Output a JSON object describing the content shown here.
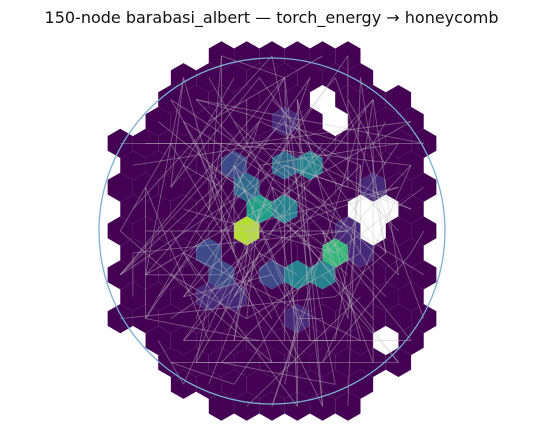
{
  "figure": {
    "title": "150-node barabasi_albert — torch_energy → honeycomb"
  },
  "colors": {
    "background": "#ffffff",
    "boundary_circle": "#7aaed0",
    "edges": "#c0c0c0",
    "missing_cell": "#ffffff",
    "colormap": [
      "#440154",
      "#482878",
      "#3e4a89",
      "#31688e",
      "#26828e",
      "#1f9e89",
      "#35b779",
      "#6ece58",
      "#b5de2b",
      "#fde725"
    ]
  },
  "chart_data": {
    "type": "heatmap",
    "layout": "honeycomb",
    "node_count": 150,
    "rows": [
      {
        "q_start": 0,
        "cells": 6
      },
      {
        "q_start": -2,
        "cells": 8
      },
      {
        "q_start": -2,
        "cells": 10
      },
      {
        "q_start": -3,
        "cells": 11
      },
      {
        "q_start": -4,
        "cells": 13
      },
      {
        "q_start": -4,
        "cells": 12
      },
      {
        "q_start": -4,
        "cells": 13
      },
      {
        "q_start": -4,
        "cells": 12
      },
      {
        "q_start": -4,
        "cells": 13
      },
      {
        "q_start": -4,
        "cells": 12
      },
      {
        "q_start": -4,
        "cells": 13
      },
      {
        "q_start": -4,
        "cells": 12
      },
      {
        "q_start": -4,
        "cells": 13
      },
      {
        "q_start": -3,
        "cells": 11
      },
      {
        "q_start": -2,
        "cells": 10
      },
      {
        "q_start": -2,
        "cells": 8
      },
      {
        "q_start": 0,
        "cells": 6
      }
    ],
    "missing": [
      [
        7,
        9
      ],
      [
        7,
        10
      ],
      [
        8,
        10
      ],
      [
        2,
        6
      ],
      [
        3,
        7
      ],
      [
        13,
        9
      ]
    ],
    "highlights": [
      {
        "row": 8,
        "col": 5,
        "value": 0.93
      },
      {
        "row": 9,
        "col": 8,
        "value": 0.68
      },
      {
        "row": 7,
        "col": 5,
        "value": 0.55
      },
      {
        "row": 5,
        "col": 7,
        "value": 0.48
      },
      {
        "row": 7,
        "col": 6,
        "value": 0.42
      },
      {
        "row": 10,
        "col": 7,
        "value": 0.42
      },
      {
        "row": 10,
        "col": 8,
        "value": 0.4
      },
      {
        "row": 6,
        "col": 5,
        "value": 0.3
      },
      {
        "row": 5,
        "col": 6,
        "value": 0.28
      },
      {
        "row": 10,
        "col": 4,
        "value": 0.26
      },
      {
        "row": 10,
        "col": 6,
        "value": 0.24
      },
      {
        "row": 5,
        "col": 4,
        "value": 0.2
      },
      {
        "row": 9,
        "col": 3,
        "value": 0.18
      },
      {
        "row": 11,
        "col": 3,
        "value": 0.16
      },
      {
        "row": 11,
        "col": 4,
        "value": 0.15
      },
      {
        "row": 3,
        "col": 5,
        "value": 0.12
      },
      {
        "row": 8,
        "col": 9,
        "value": 0.12
      },
      {
        "row": 6,
        "col": 10,
        "value": 0.1
      },
      {
        "row": 9,
        "col": 9,
        "value": 0.1
      },
      {
        "row": 12,
        "col": 7,
        "value": 0.08
      }
    ],
    "baseline_value": 0.0,
    "edge_count": 140,
    "edge_seed": 7
  }
}
